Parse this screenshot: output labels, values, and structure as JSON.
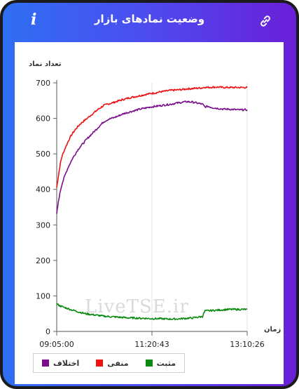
{
  "header": {
    "title": "وضعیت نمادهای بازار",
    "info_icon_glyph": "i",
    "link_icon": "link-icon"
  },
  "watermark": "LiveTSE.ir",
  "colors": {
    "header_gradient": [
      "#2f6ff2",
      "#6a1fd8"
    ],
    "negative": "#ee1111",
    "difference": "#7a0f8c",
    "positive": "#0b8a12"
  },
  "chart_data": {
    "type": "line",
    "ylabel": "تعداد نماد",
    "xlabel": "زمان",
    "ylim": [
      0,
      700
    ],
    "yticks": [
      0,
      100,
      200,
      300,
      400,
      500,
      600,
      700
    ],
    "x_tick_labels": [
      "09:05:00",
      "11:20:43",
      "13:10:26"
    ],
    "x_range": [
      0,
      366
    ],
    "grid": "vertical",
    "legend_position": "bottom-left",
    "x": [
      0,
      2,
      4,
      6,
      8,
      10,
      14,
      18,
      22,
      26,
      30,
      35,
      40,
      45,
      50,
      55,
      60,
      70,
      80,
      90,
      100,
      110,
      120,
      130,
      140,
      150,
      160,
      170,
      180,
      190,
      200,
      210,
      220,
      230,
      240,
      250,
      260,
      270,
      280,
      285,
      290,
      300,
      310,
      320,
      330,
      340,
      350,
      360,
      366
    ],
    "series": [
      {
        "name": "منفی",
        "color": "#ee1111",
        "values": [
          405,
          425,
          445,
          465,
          480,
          492,
          508,
          522,
          535,
          547,
          557,
          567,
          576,
          584,
          590,
          596,
          602,
          614,
          626,
          636,
          641,
          645,
          650,
          654,
          658,
          661,
          664,
          667,
          670,
          672,
          675,
          677,
          679,
          680,
          681,
          683,
          684,
          685,
          686,
          688,
          687,
          688,
          688,
          687,
          687,
          687,
          687,
          687,
          687
        ]
      },
      {
        "name": "اختلاف",
        "color": "#7a0f8c",
        "values": [
          330,
          352,
          372,
          388,
          402,
          414,
          432,
          448,
          462,
          474,
          486,
          498,
          510,
          520,
          528,
          537,
          545,
          560,
          575,
          590,
          598,
          602,
          608,
          614,
          618,
          622,
          626,
          629,
          632,
          634,
          636,
          638,
          640,
          643,
          645,
          647,
          646,
          643,
          640,
          632,
          634,
          630,
          628,
          626,
          626,
          625,
          624,
          624,
          624
        ]
      },
      {
        "name": "مثبت",
        "color": "#0b8a12",
        "values": [
          78,
          76,
          74,
          72,
          71,
          70,
          68,
          66,
          64,
          62,
          60,
          58,
          56,
          54,
          52,
          50,
          49,
          47,
          45,
          43,
          42,
          41,
          40,
          39,
          38,
          38,
          37,
          37,
          36,
          36,
          36,
          35,
          35,
          35,
          36,
          37,
          38,
          40,
          42,
          58,
          58,
          59,
          60,
          61,
          62,
          62,
          62,
          62,
          62
        ]
      }
    ]
  },
  "legend": {
    "items": [
      "مثبت",
      "منفی",
      "اختلاف"
    ]
  }
}
